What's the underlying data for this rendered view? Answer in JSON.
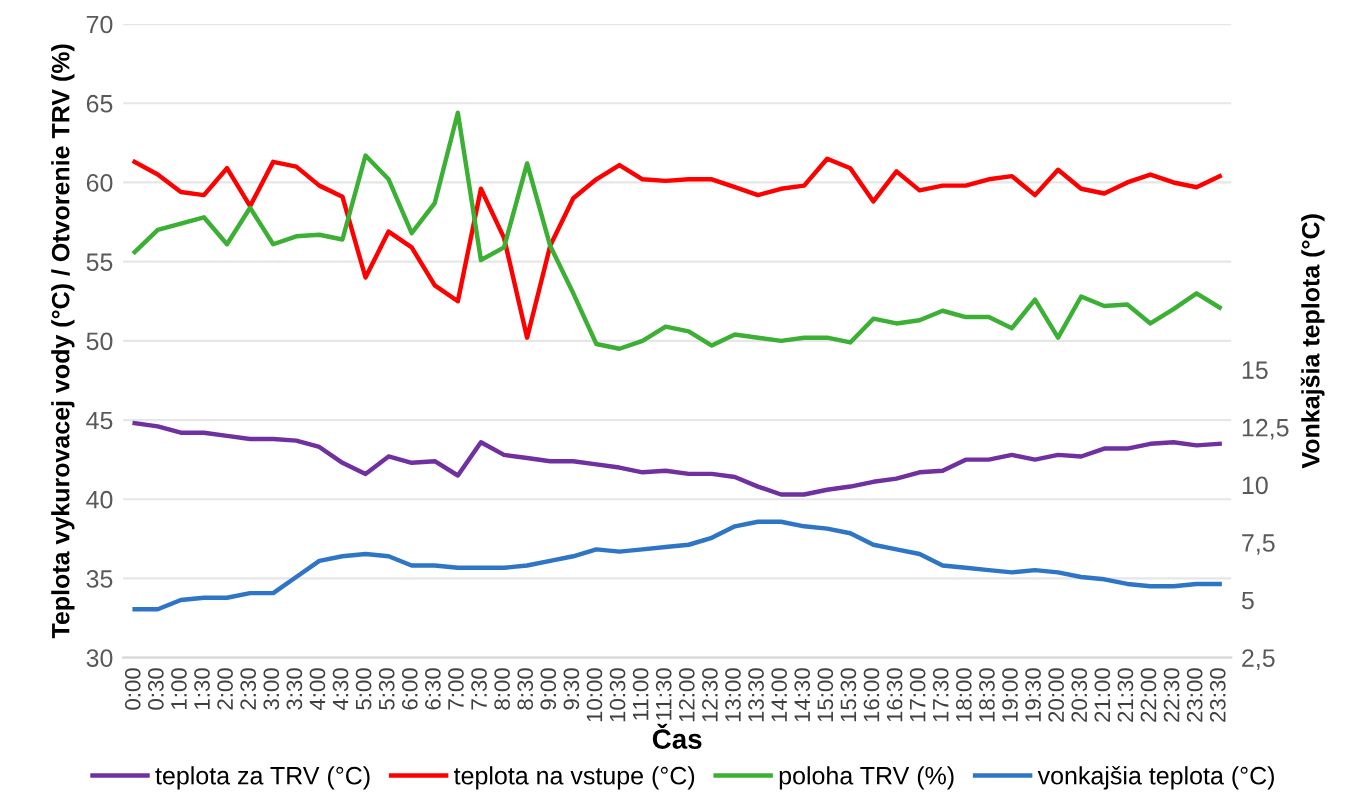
{
  "chart_data": {
    "type": "line",
    "xlabel": "Čas",
    "ylabel": "Teplota vykurovacej vody (°C) / Otvorenie TRV (%)",
    "y2label": "Vonkajšia teplota (°C)",
    "categories": [
      "0:00",
      "0:30",
      "1:00",
      "1:30",
      "2:00",
      "2:30",
      "3:00",
      "3:30",
      "4:00",
      "4:30",
      "5:00",
      "5:30",
      "6:00",
      "6:30",
      "7:00",
      "7:30",
      "8:00",
      "8:30",
      "9:00",
      "9:30",
      "10:00",
      "10:30",
      "11:00",
      "11:30",
      "12:00",
      "12:30",
      "13:00",
      "13:30",
      "14:00",
      "14:30",
      "15:00",
      "15:30",
      "16:00",
      "16:30",
      "17:00",
      "17:30",
      "18:00",
      "18:30",
      "19:00",
      "19:30",
      "20:00",
      "20:30",
      "21:00",
      "21:30",
      "22:00",
      "22:30",
      "23:00",
      "23:30"
    ],
    "series": [
      {
        "name": "teplota za TRV (°C)",
        "color": "#7030a0",
        "values": [
          44.8,
          44.6,
          44.2,
          44.2,
          44.0,
          43.8,
          43.8,
          43.7,
          43.3,
          42.3,
          41.6,
          42.7,
          42.3,
          42.4,
          41.5,
          43.6,
          42.8,
          42.6,
          42.4,
          42.4,
          42.2,
          42.0,
          41.7,
          41.8,
          41.6,
          41.6,
          41.4,
          40.8,
          40.3,
          40.3,
          40.6,
          40.8,
          41.1,
          41.3,
          41.7,
          41.8,
          42.5,
          42.5,
          42.8,
          42.5,
          42.8,
          42.7,
          43.2,
          43.2,
          43.5,
          43.6,
          43.4,
          43.5
        ]
      },
      {
        "name": "teplota na vstupe (°C)",
        "color": "#ff0000",
        "values": [
          61.3,
          60.5,
          59.4,
          59.2,
          60.9,
          58.5,
          61.3,
          61.0,
          59.8,
          59.1,
          54.0,
          56.9,
          55.9,
          53.5,
          52.5,
          59.6,
          56.5,
          50.2,
          56.0,
          59.0,
          60.2,
          61.1,
          60.2,
          60.1,
          60.2,
          60.2,
          59.7,
          59.2,
          59.6,
          59.8,
          61.5,
          60.9,
          58.8,
          60.7,
          59.5,
          59.8,
          59.8,
          60.2,
          60.4,
          59.2,
          60.8,
          59.6,
          59.3,
          60.0,
          60.5,
          60.0,
          59.7,
          60.4
        ]
      },
      {
        "name": "poloha TRV (%)",
        "color": "#3cb034",
        "values": [
          55.6,
          57.0,
          57.4,
          57.8,
          56.1,
          58.4,
          56.1,
          56.6,
          56.7,
          56.4,
          61.7,
          60.2,
          56.8,
          58.7,
          64.4,
          55.1,
          55.9,
          61.2,
          56.0,
          53.0,
          49.8,
          49.5,
          50.0,
          50.9,
          50.6,
          49.7,
          50.4,
          50.2,
          50.0,
          50.2,
          50.2,
          49.9,
          51.4,
          51.1,
          51.3,
          51.9,
          51.5,
          51.5,
          50.8,
          52.6,
          50.2,
          52.8,
          52.2,
          52.3,
          51.1,
          52.0,
          53.0,
          52.1
        ]
      },
      {
        "name": "vonkajšia teplota (°C)",
        "color": "#2e75c6",
        "axis": "y2",
        "values": [
          4.6,
          4.6,
          5.0,
          5.1,
          5.1,
          5.3,
          5.3,
          6.0,
          6.7,
          6.9,
          7.0,
          6.9,
          6.5,
          6.5,
          6.4,
          6.4,
          6.4,
          6.5,
          6.7,
          6.9,
          7.2,
          7.1,
          7.2,
          7.3,
          7.4,
          7.7,
          8.2,
          8.4,
          8.4,
          8.2,
          8.1,
          7.9,
          7.4,
          7.2,
          7.0,
          6.5,
          6.4,
          6.3,
          6.2,
          6.3,
          6.2,
          6.0,
          5.9,
          5.7,
          5.6,
          5.6,
          5.7,
          5.7
        ]
      }
    ],
    "ylim": [
      30,
      70
    ],
    "yticks": [
      30,
      35,
      40,
      45,
      50,
      55,
      60,
      65,
      70
    ],
    "y2lim": [
      2.5,
      30
    ],
    "y2ticks": [
      {
        "value": 2.5,
        "label": "2,5"
      },
      5,
      {
        "value": 7.5,
        "label": "7,5"
      },
      10,
      {
        "value": 12.5,
        "label": "12,5"
      },
      15
    ],
    "grid": "y",
    "legend": "bottom",
    "marker": "none",
    "line_style": "solid"
  }
}
